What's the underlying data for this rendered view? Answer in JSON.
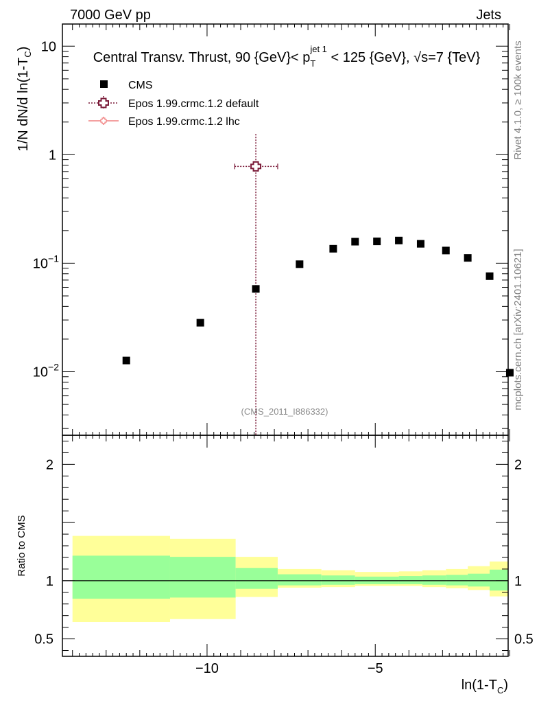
{
  "header": {
    "left": "7000 GeV pp",
    "right": "Jets"
  },
  "side_labels": {
    "rivet": "Rivet 4.1.0, ≥ 100k events",
    "mcplots": "mcplots.cern.ch [arXiv:2401.10621]"
  },
  "colors": {
    "data": "#000000",
    "default": "#7a1a38",
    "lhc": "#f08080",
    "band_inner": "#99ff99",
    "band_outer": "#ffff99"
  },
  "chart_data": {
    "type": "scatter",
    "title": "Central Transv. Thrust, 90 {GeV}< p_T^{jet 1} < 125 {GeV}, √s=7 {TeV}",
    "title_parts": {
      "pre": "Central Transv. Thrust, 90 {GeV}< p",
      "sub": "T",
      "sup": "jet 1",
      "post": " < 125 {GeV}, √s=7 {TeV}"
    },
    "xlabel": "ln(1-T_C)",
    "xlabel_parts": {
      "main": "ln(1-T",
      "sub": "C",
      "close": ")"
    },
    "ylabel": "1/N   dN/d ln(1-T_C)",
    "ylabel_parts": {
      "pre": "1/N    dN/d ln(1-T",
      "sub": "C",
      "close": ")"
    },
    "xlim": [
      -14.3,
      -1.05
    ],
    "ylim": [
      0.0026,
      16
    ],
    "yscale": "log",
    "x_ticks": [
      {
        "v": -10,
        "label": "−10"
      },
      {
        "v": -5,
        "label": "−5"
      }
    ],
    "y_ticks": [
      {
        "v": 0.01,
        "base": "10",
        "exp": "−2"
      },
      {
        "v": 0.1,
        "base": "10",
        "exp": "−1"
      },
      {
        "v": 1,
        "base": "1",
        "exp": ""
      },
      {
        "v": 10,
        "base": "10",
        "exp": ""
      }
    ],
    "watermark": "(CMS_2011_I886332)",
    "legend": [
      {
        "key": "cms",
        "label": "CMS"
      },
      {
        "key": "default",
        "label": "Epos 1.99.crmc.1.2 default"
      },
      {
        "key": "lhc",
        "label": "Epos 1.99.crmc.1.2 lhc"
      }
    ],
    "series": [
      {
        "name": "CMS",
        "x": [
          -12.4,
          -10.2,
          -8.55,
          -7.25,
          -6.25,
          -5.6,
          -4.95,
          -4.3,
          -3.65,
          -2.9,
          -2.25,
          -1.6,
          -1.0
        ],
        "y": [
          0.0127,
          0.0283,
          0.058,
          0.098,
          0.136,
          0.158,
          0.159,
          0.162,
          0.151,
          0.131,
          0.112,
          0.076,
          0.0098
        ]
      },
      {
        "name": "Epos 1.99.crmc.1.2 default",
        "x": [
          -8.55
        ],
        "y": [
          0.78
        ],
        "xerr": [
          [
            -9.18,
            -7.9
          ]
        ],
        "yerr": [
          [
            0.0001,
            1.55
          ]
        ]
      }
    ],
    "ratio": {
      "ylabel": "Ratio to CMS",
      "ylim": [
        0.35,
        2.25
      ],
      "ticks": [
        {
          "v": 0.5,
          "label": "0.5"
        },
        {
          "v": 1,
          "label": "1"
        },
        {
          "v": 2,
          "label": "2"
        }
      ],
      "bins": [
        {
          "x0": -14.0,
          "x1": -11.1,
          "inner": [
            0.845,
            1.215
          ],
          "outer": [
            0.645,
            1.385
          ]
        },
        {
          "x0": -11.1,
          "x1": -9.15,
          "inner": [
            0.855,
            1.205
          ],
          "outer": [
            0.67,
            1.36
          ]
        },
        {
          "x0": -9.15,
          "x1": -7.9,
          "inner": [
            0.93,
            1.11
          ],
          "outer": [
            0.86,
            1.205
          ]
        },
        {
          "x0": -7.9,
          "x1": -6.6,
          "inner": [
            0.96,
            1.055
          ],
          "outer": [
            0.94,
            1.1
          ]
        },
        {
          "x0": -6.6,
          "x1": -5.6,
          "inner": [
            0.965,
            1.045
          ],
          "outer": [
            0.945,
            1.09
          ]
        },
        {
          "x0": -5.6,
          "x1": -4.3,
          "inner": [
            0.97,
            1.035
          ],
          "outer": [
            0.955,
            1.075
          ]
        },
        {
          "x0": -4.3,
          "x1": -3.6,
          "inner": [
            0.97,
            1.04
          ],
          "outer": [
            0.955,
            1.08
          ]
        },
        {
          "x0": -3.6,
          "x1": -2.9,
          "inner": [
            0.965,
            1.045
          ],
          "outer": [
            0.945,
            1.09
          ]
        },
        {
          "x0": -2.9,
          "x1": -2.25,
          "inner": [
            0.96,
            1.05
          ],
          "outer": [
            0.935,
            1.1
          ]
        },
        {
          "x0": -2.25,
          "x1": -1.6,
          "inner": [
            0.95,
            1.06
          ],
          "outer": [
            0.92,
            1.125
          ]
        },
        {
          "x0": -1.6,
          "x1": -1.05,
          "inner": [
            0.915,
            1.095
          ],
          "outer": [
            0.865,
            1.165
          ]
        }
      ]
    }
  }
}
